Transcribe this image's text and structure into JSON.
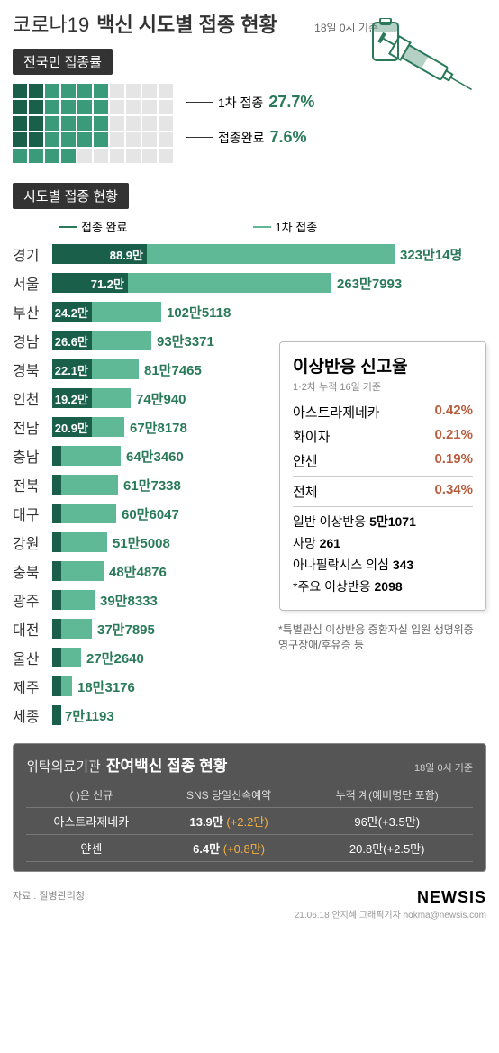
{
  "title": {
    "t1": "코로나19",
    "t2": "백신 시도별 접종 현황",
    "date": "18일 0시 기준"
  },
  "section1": {
    "header": "전국민 접종률",
    "waffle": {
      "cols": 10,
      "rows": 5,
      "label1": "1차 접종",
      "pct1": "27.7%",
      "label2": "접종완료",
      "pct2": "7.6%",
      "filled1": 27,
      "filledPartial": 1,
      "filled2": 7
    }
  },
  "section2": {
    "header": "시도별 접종 현황",
    "legend": {
      "l1": "접종 완료",
      "l2": "1차 접종"
    },
    "maxVal": 3230000,
    "bars": [
      {
        "name": "경기",
        "done": 889000,
        "done_label": "88.9만",
        "first": 3230014,
        "first_label": "323만14명"
      },
      {
        "name": "서울",
        "done": 712000,
        "done_label": "71.2만",
        "first": 2637993,
        "first_label": "263만7993"
      },
      {
        "name": "부산",
        "done": 242000,
        "done_label": "24.2만",
        "first": 1025118,
        "first_label": "102만5118"
      },
      {
        "name": "경남",
        "done": 266000,
        "done_label": "26.6만",
        "first": 933371,
        "first_label": "93만3371"
      },
      {
        "name": "경북",
        "done": 221000,
        "done_label": "22.1만",
        "first": 817465,
        "first_label": "81만7465"
      },
      {
        "name": "인천",
        "done": 192000,
        "done_label": "19.2만",
        "first": 740940,
        "first_label": "74만940"
      },
      {
        "name": "전남",
        "done": 209000,
        "done_label": "20.9만",
        "first": 678178,
        "first_label": "67만8178"
      },
      {
        "name": "충남",
        "done": 0,
        "done_label": "",
        "first": 643460,
        "first_label": "64만3460"
      },
      {
        "name": "전북",
        "done": 0,
        "done_label": "",
        "first": 617338,
        "first_label": "61만7338"
      },
      {
        "name": "대구",
        "done": 0,
        "done_label": "",
        "first": 606047,
        "first_label": "60만6047"
      },
      {
        "name": "강원",
        "done": 0,
        "done_label": "",
        "first": 515008,
        "first_label": "51만5008"
      },
      {
        "name": "충북",
        "done": 0,
        "done_label": "",
        "first": 484876,
        "first_label": "48만4876"
      },
      {
        "name": "광주",
        "done": 0,
        "done_label": "",
        "first": 398333,
        "first_label": "39만8333"
      },
      {
        "name": "대전",
        "done": 0,
        "done_label": "",
        "first": 377895,
        "first_label": "37만7895"
      },
      {
        "name": "울산",
        "done": 0,
        "done_label": "",
        "first": 272640,
        "first_label": "27만2640"
      },
      {
        "name": "제주",
        "done": 0,
        "done_label": "",
        "first": 183176,
        "first_label": "18만3176"
      },
      {
        "name": "세종",
        "done": 0,
        "done_label": "",
        "first": 71193,
        "first_label": "7만1193"
      }
    ],
    "track_width": 380,
    "done_colors": "#1a5f4a",
    "first_colors": "#5fb896"
  },
  "sidebox": {
    "title": "이상반응 신고율",
    "sub": "1·2차 누적 16일 기준",
    "rows": [
      {
        "name": "아스트라제네카",
        "val": "0.42%"
      },
      {
        "name": "화이자",
        "val": "0.21%"
      },
      {
        "name": "얀센",
        "val": "0.19%"
      }
    ],
    "total": {
      "name": "전체",
      "val": "0.34%"
    },
    "items": [
      {
        "label": "일반 이상반응",
        "num": "5만1071"
      },
      {
        "label": "사망",
        "num": "261"
      },
      {
        "label": "아나필락시스 의심",
        "num": "343"
      },
      {
        "label": "*주요 이상반응",
        "num": "2098"
      }
    ],
    "note": "*특별관심 이상반응 중환자실 입원\n생명위중 영구장애/후유증 등"
  },
  "bottom": {
    "t1": "위탁의료기관",
    "t2": "잔여백신 접종 현황",
    "date": "18일 0시 기준",
    "note": "( )은 신규",
    "cols": [
      "",
      "SNS 당일신속예약",
      "누적 계(예비명단 포함)"
    ],
    "rows": [
      {
        "name": "아스트라제네카",
        "c1": "13.9만",
        "c1d": "(+2.2만)",
        "c2": "96만(+3.5만)"
      },
      {
        "name": "얀센",
        "c1": "6.4만",
        "c1d": "(+0.8만)",
        "c2": "20.8만(+2.5만)"
      }
    ]
  },
  "footer": {
    "src": "자료 : 질병관리청",
    "brand": "NEWSIS",
    "credit": "21.06.18  안지혜 그래픽기자  hokma@newsis.com"
  }
}
